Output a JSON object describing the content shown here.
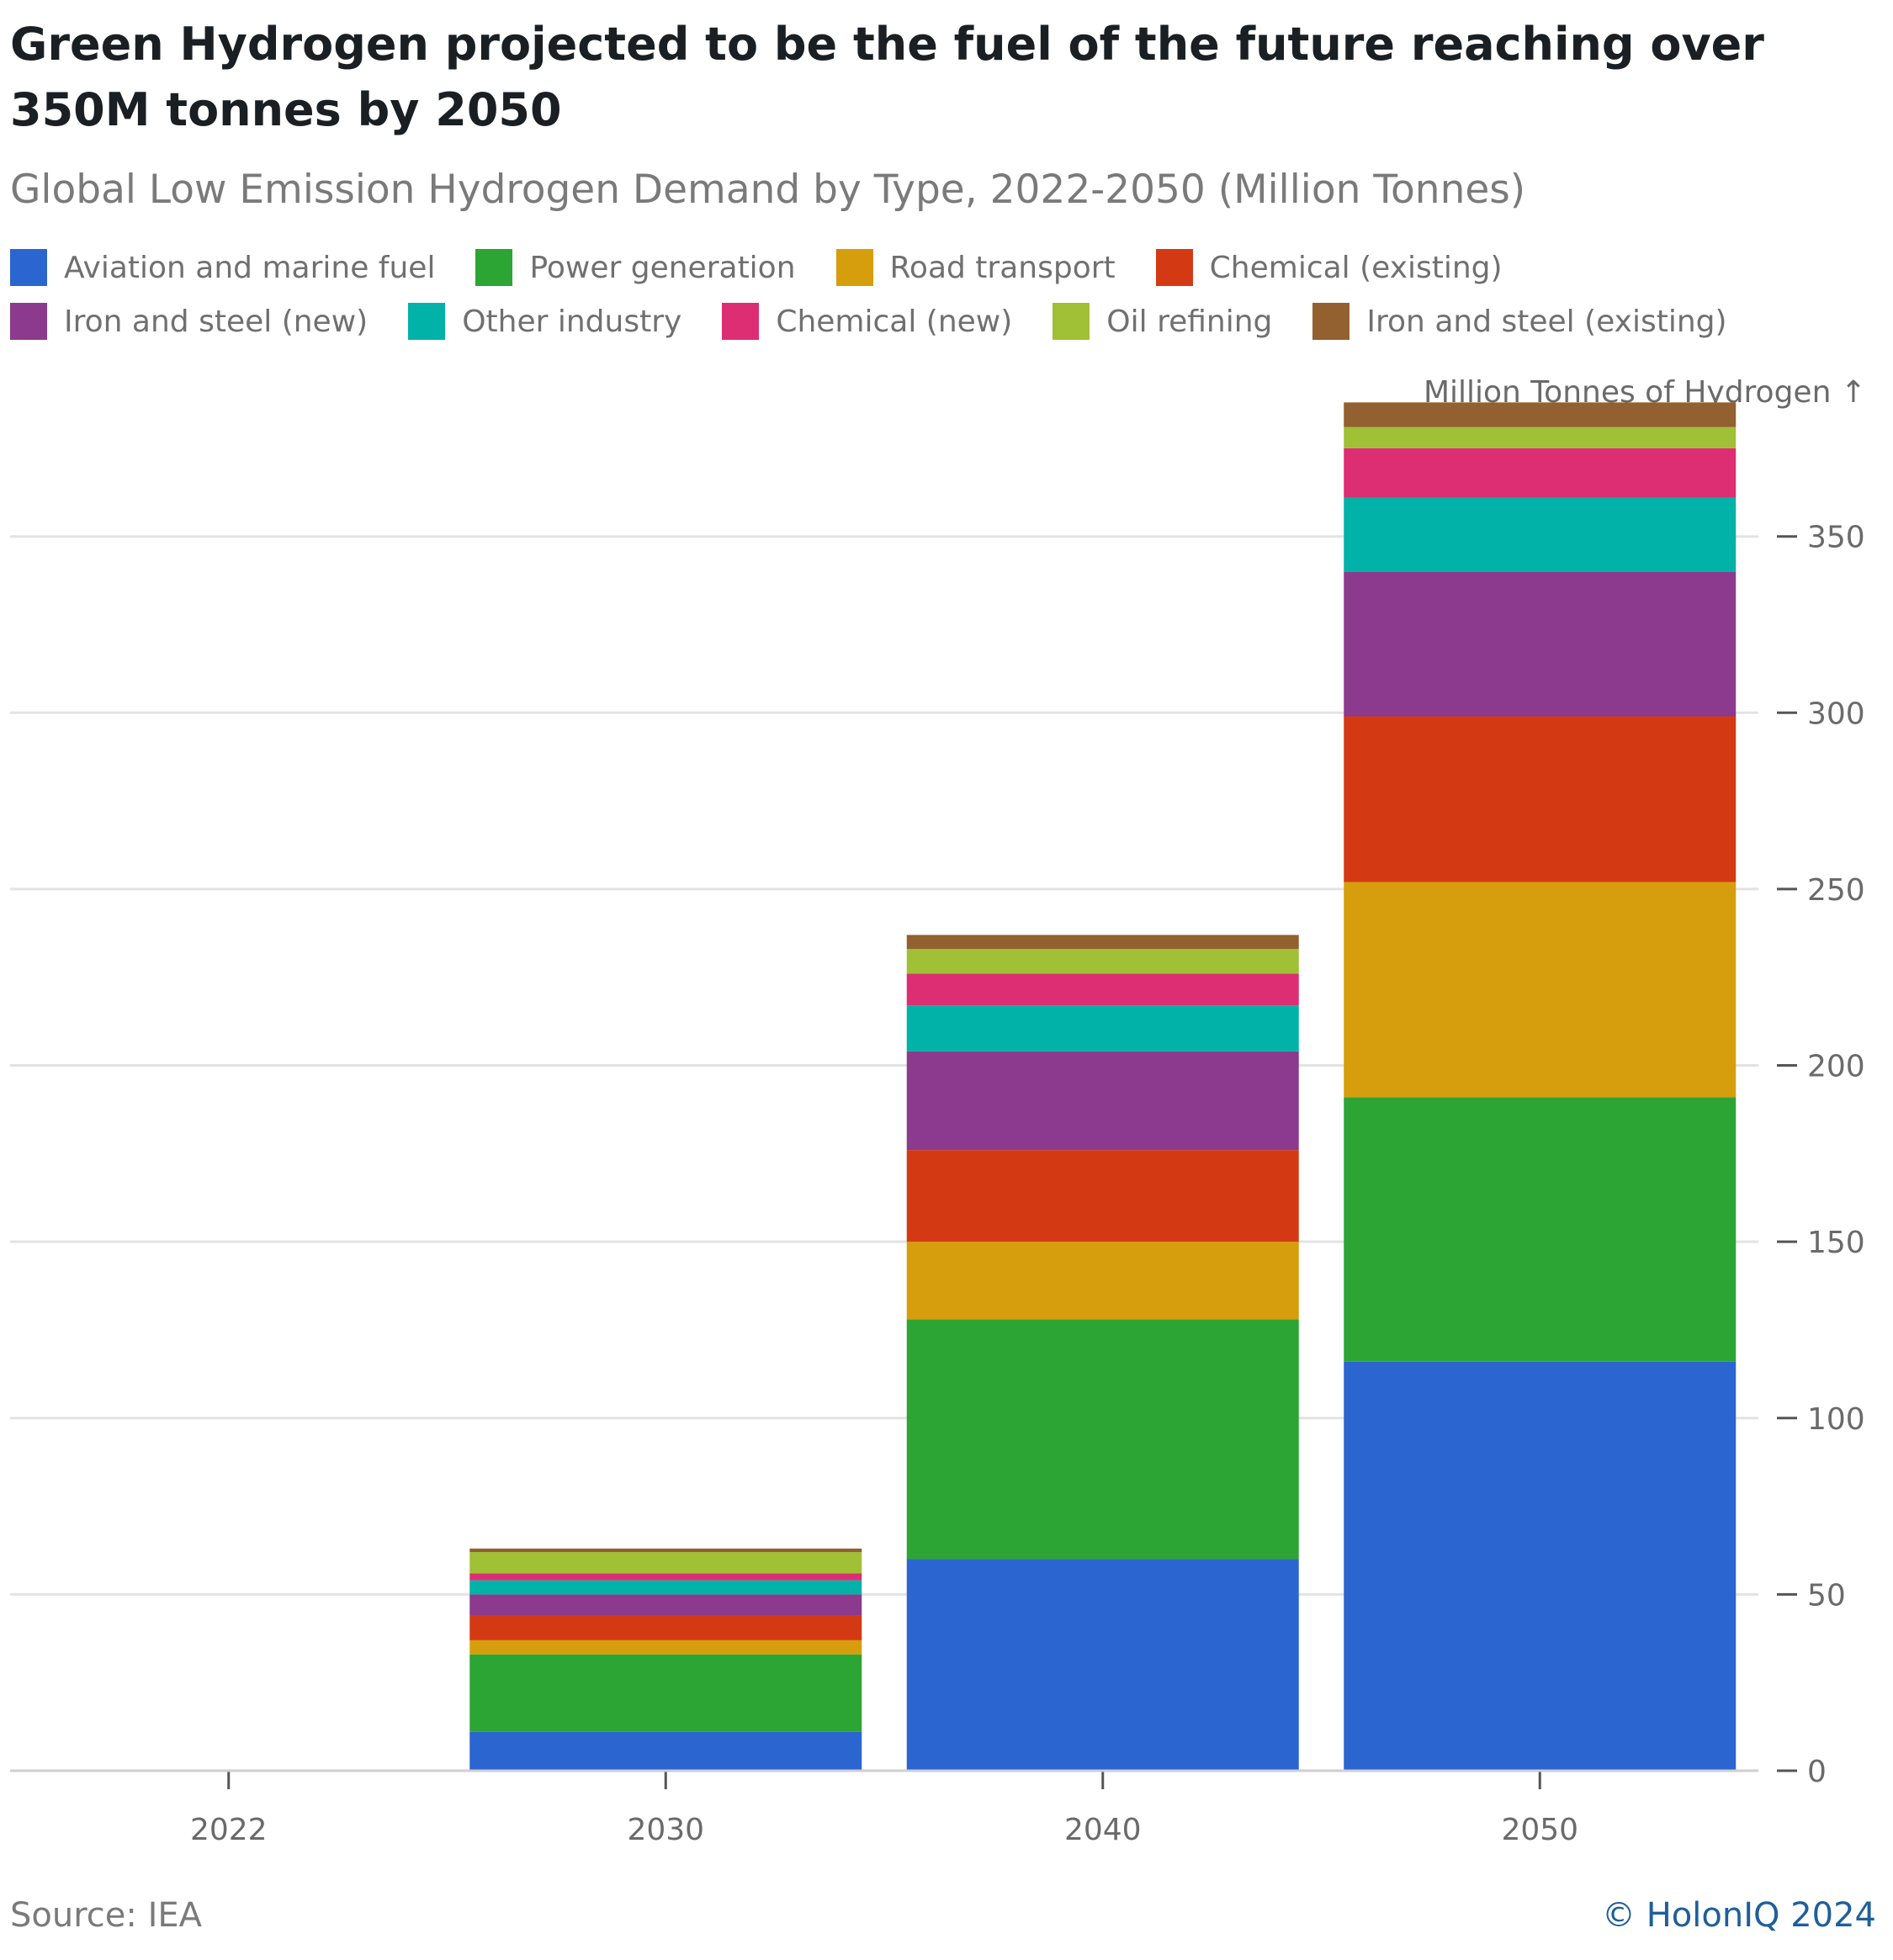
{
  "title": "Green Hydrogen projected to be the fuel of the future reaching over 350M tonnes by 2050",
  "subtitle": "Global Low Emission Hydrogen Demand by Type, 2022-2050 (Million Tonnes)",
  "source": "Source: IEA",
  "credit": "© HolonIQ 2024",
  "chart_data": {
    "type": "bar",
    "stacked": true,
    "categories": [
      "2022",
      "2030",
      "2040",
      "2050"
    ],
    "ylabel": "Million Tonnes of Hydrogen ↑",
    "ylim": [
      0,
      390
    ],
    "yticks": [
      0,
      50,
      100,
      150,
      200,
      250,
      300,
      350
    ],
    "y_axis_side": "right",
    "grid": true,
    "legend_position": "top",
    "series": [
      {
        "name": "Aviation and marine fuel",
        "color": "#2b65d0",
        "values": [
          0,
          11,
          60,
          116
        ]
      },
      {
        "name": "Power generation",
        "color": "#2ca535",
        "values": [
          0,
          22,
          68,
          75
        ]
      },
      {
        "name": "Road transport",
        "color": "#d69e0c",
        "values": [
          0,
          4,
          22,
          61
        ]
      },
      {
        "name": "Chemical (existing)",
        "color": "#d33a14",
        "values": [
          0,
          7,
          26,
          47
        ]
      },
      {
        "name": "Iron and steel (new)",
        "color": "#8c3a8e",
        "values": [
          0,
          6,
          28,
          41
        ]
      },
      {
        "name": "Other industry",
        "color": "#00b2a7",
        "values": [
          0,
          4,
          13,
          21
        ]
      },
      {
        "name": "Chemical (new)",
        "color": "#dd2e73",
        "values": [
          0,
          2,
          9,
          14
        ]
      },
      {
        "name": "Oil refining",
        "color": "#a0c035",
        "values": [
          0,
          6,
          7,
          6
        ]
      },
      {
        "name": "Iron and steel (existing)",
        "color": "#93602f",
        "values": [
          0,
          1,
          4,
          7
        ]
      }
    ]
  }
}
